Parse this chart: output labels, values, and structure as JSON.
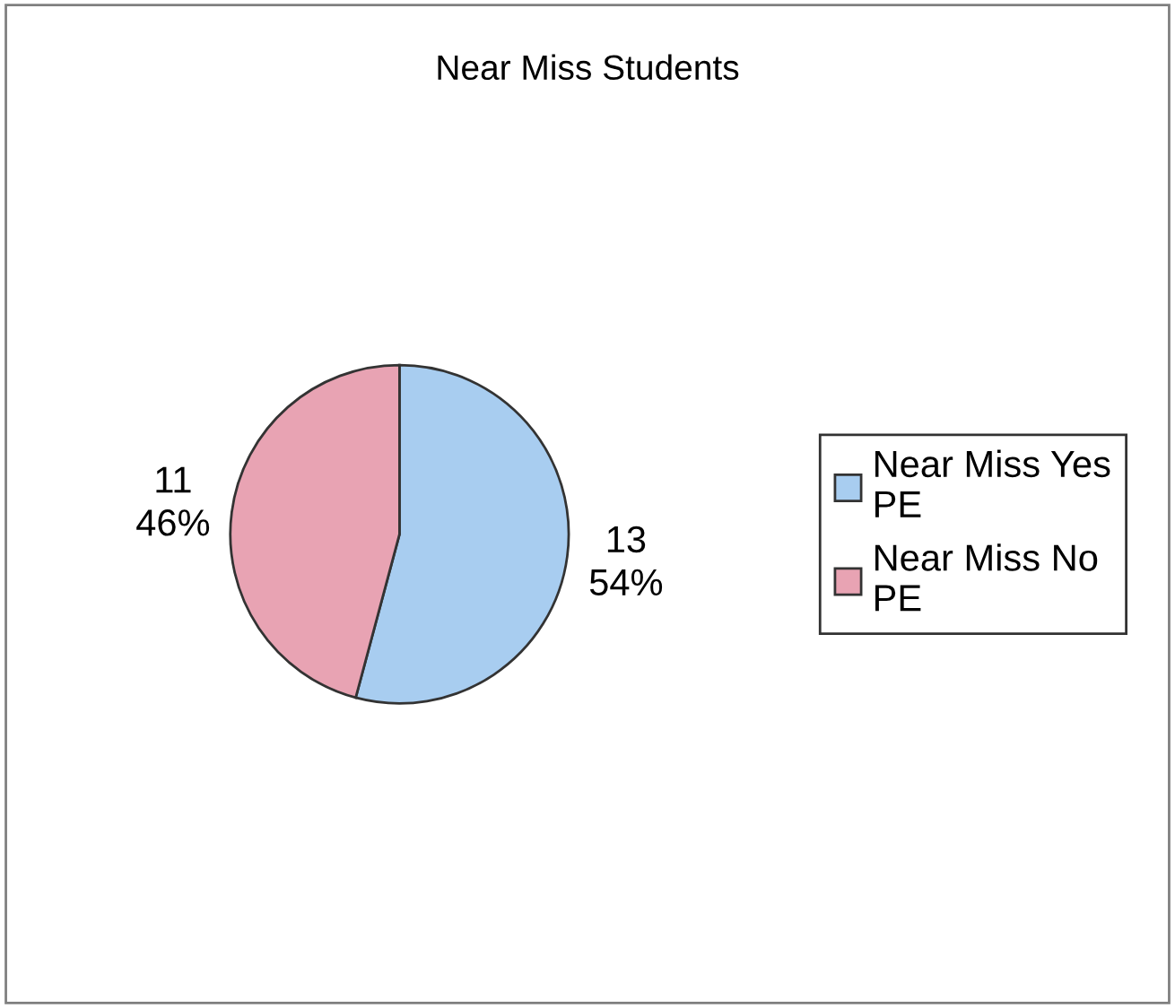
{
  "chart_data": {
    "type": "pie",
    "title": "Near Miss Students",
    "categories": [
      "Near Miss Yes PE",
      "Near Miss No PE"
    ],
    "values": [
      13,
      11
    ],
    "value_labels": [
      "13\n54%",
      "11\n46%"
    ],
    "colors": [
      "#a8cdf0",
      "#e8a3b3"
    ],
    "legend": "right"
  }
}
